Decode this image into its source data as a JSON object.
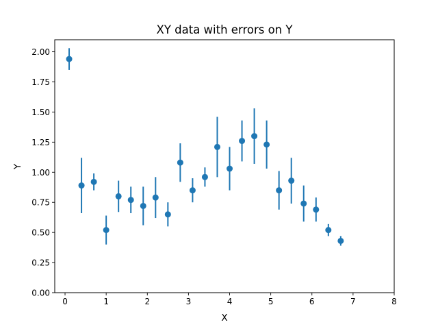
{
  "chart_data": {
    "type": "scatter",
    "title": "XY data with errors on Y",
    "xlabel": "X",
    "ylabel": "Y",
    "xlim": [
      -0.25,
      8.0
    ],
    "ylim": [
      0.0,
      2.1
    ],
    "xticks": [
      0,
      1,
      2,
      3,
      4,
      5,
      6,
      7,
      8
    ],
    "yticks": [
      0.0,
      0.25,
      0.5,
      0.75,
      1.0,
      1.25,
      1.5,
      1.75,
      2.0
    ],
    "xtick_labels": [
      "0",
      "1",
      "2",
      "3",
      "4",
      "5",
      "6",
      "7",
      "8"
    ],
    "ytick_labels": [
      "0.00",
      "0.25",
      "0.50",
      "0.75",
      "1.00",
      "1.25",
      "1.50",
      "1.75",
      "2.00"
    ],
    "grid": false,
    "color": "#1f77b4",
    "series": [
      {
        "x": [
          0.1,
          0.4,
          0.7,
          1.0,
          1.3,
          1.6,
          1.9,
          2.2,
          2.5,
          2.8,
          3.1,
          3.4,
          3.7,
          4.0,
          4.3,
          4.6,
          4.9,
          5.2,
          5.5,
          5.8,
          6.1,
          6.4,
          6.7
        ],
        "y": [
          1.94,
          0.89,
          0.92,
          0.52,
          0.8,
          0.77,
          0.72,
          0.79,
          0.65,
          1.08,
          0.85,
          0.96,
          1.21,
          1.03,
          1.26,
          1.3,
          1.23,
          0.85,
          0.93,
          0.74,
          0.69,
          0.52,
          0.43
        ],
        "yerr": [
          0.09,
          0.23,
          0.07,
          0.12,
          0.13,
          0.11,
          0.16,
          0.17,
          0.1,
          0.16,
          0.1,
          0.08,
          0.25,
          0.18,
          0.17,
          0.23,
          0.2,
          0.16,
          0.19,
          0.15,
          0.1,
          0.05,
          0.04
        ]
      }
    ]
  }
}
